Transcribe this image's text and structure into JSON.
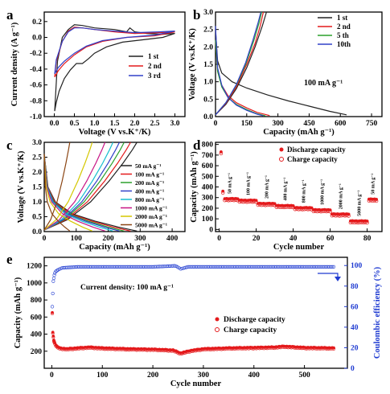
{
  "chart_data": [
    {
      "panel": "a",
      "type": "line",
      "xlabel": "Voltage (V vs.K⁺/K)",
      "ylabel": "Current density (A g⁻¹)",
      "xlim": [
        -0.25,
        3.25
      ],
      "ylim": [
        -1.0,
        0.32
      ],
      "xticks": [
        "0.0",
        "0.5",
        "1.0",
        "1.5",
        "2.0",
        "2.5",
        "3.0"
      ],
      "yticks": [
        "-1.0",
        "-0.8",
        "-0.6",
        "-0.4",
        "-0.2",
        "0.0",
        "0.2"
      ],
      "legend": {
        "position": "center-right",
        "entries": [
          "1 st",
          "2 nd",
          "3 rd"
        ]
      },
      "series": [
        {
          "name": "1 st",
          "color": "#222222",
          "points": [
            [
              0.01,
              -0.93
            ],
            [
              0.05,
              -0.82
            ],
            [
              0.12,
              -0.68
            ],
            [
              0.25,
              -0.52
            ],
            [
              0.4,
              -0.41
            ],
            [
              0.55,
              -0.33
            ],
            [
              0.7,
              -0.33
            ],
            [
              0.85,
              -0.27
            ],
            [
              1.0,
              -0.2
            ],
            [
              1.3,
              -0.12
            ],
            [
              1.7,
              -0.06
            ],
            [
              2.2,
              -0.03
            ],
            [
              2.7,
              0.0
            ],
            [
              3.0,
              0.05
            ],
            [
              2.7,
              0.04
            ],
            [
              2.3,
              0.05
            ],
            [
              2.0,
              0.07
            ],
            [
              1.88,
              0.12
            ],
            [
              1.8,
              0.07
            ],
            [
              1.5,
              0.1
            ],
            [
              1.0,
              0.12
            ],
            [
              0.7,
              0.15
            ],
            [
              0.5,
              0.16
            ],
            [
              0.35,
              0.1
            ],
            [
              0.2,
              0.0
            ],
            [
              0.08,
              -0.3
            ],
            [
              0.01,
              -0.93
            ]
          ]
        },
        {
          "name": "2 nd",
          "color": "#e41a1c",
          "points": [
            [
              0.01,
              -0.5
            ],
            [
              0.1,
              -0.42
            ],
            [
              0.25,
              -0.33
            ],
            [
              0.5,
              -0.22
            ],
            [
              0.8,
              -0.12
            ],
            [
              1.2,
              -0.05
            ],
            [
              1.8,
              0.0
            ],
            [
              2.5,
              0.02
            ],
            [
              3.0,
              0.07
            ],
            [
              2.6,
              0.06
            ],
            [
              2.0,
              0.05
            ],
            [
              1.5,
              0.07
            ],
            [
              1.0,
              0.1
            ],
            [
              0.7,
              0.12
            ],
            [
              0.5,
              0.13
            ],
            [
              0.35,
              0.08
            ],
            [
              0.2,
              -0.05
            ],
            [
              0.05,
              -0.3
            ],
            [
              0.01,
              -0.5
            ]
          ]
        },
        {
          "name": "3 rd",
          "color": "#3140c8",
          "points": [
            [
              0.01,
              -0.46
            ],
            [
              0.1,
              -0.38
            ],
            [
              0.25,
              -0.3
            ],
            [
              0.5,
              -0.2
            ],
            [
              0.8,
              -0.11
            ],
            [
              1.2,
              -0.04
            ],
            [
              1.8,
              0.0
            ],
            [
              2.5,
              0.03
            ],
            [
              3.0,
              0.08
            ],
            [
              2.6,
              0.07
            ],
            [
              2.0,
              0.06
            ],
            [
              1.5,
              0.08
            ],
            [
              1.0,
              0.1
            ],
            [
              0.7,
              0.12
            ],
            [
              0.5,
              0.12
            ],
            [
              0.35,
              0.07
            ],
            [
              0.2,
              -0.05
            ],
            [
              0.05,
              -0.28
            ],
            [
              0.01,
              -0.46
            ]
          ]
        }
      ]
    },
    {
      "panel": "b",
      "type": "line",
      "xlabel": "Capacity (mAh g⁻¹)",
      "ylabel": "Voltage (V vs.K⁺/K)",
      "xlim": [
        0,
        800
      ],
      "ylim": [
        0,
        3.0
      ],
      "xticks": [
        "0",
        "150",
        "300",
        "450",
        "600",
        "750"
      ],
      "yticks": [
        "0.0",
        "0.5",
        "1.0",
        "1.5",
        "2.0",
        "2.5",
        "3.0"
      ],
      "annotation": "100 mA g⁻¹",
      "legend": {
        "position": "top-right",
        "entries": [
          "1 st",
          "2 nd",
          "5 th",
          "10th"
        ]
      },
      "series": [
        {
          "name": "1 st",
          "color": "#222222",
          "points": [
            [
              0,
              2.5
            ],
            [
              10,
              1.6
            ],
            [
              30,
              1.25
            ],
            [
              80,
              1.0
            ],
            [
              150,
              0.82
            ],
            [
              250,
              0.62
            ],
            [
              350,
              0.45
            ],
            [
              450,
              0.3
            ],
            [
              550,
              0.15
            ],
            [
              630,
              0.05
            ]
          ]
        },
        {
          "name": "2 nd",
          "color": "#e41a1c",
          "points": [
            [
              0,
              2.2
            ],
            [
              10,
              1.3
            ],
            [
              30,
              0.9
            ],
            [
              60,
              0.6
            ],
            [
              100,
              0.4
            ],
            [
              150,
              0.25
            ],
            [
              200,
              0.12
            ],
            [
              260,
              0.03
            ]
          ]
        },
        {
          "name": "5 th",
          "color": "#2ca02c",
          "points": [
            [
              0,
              2.2
            ],
            [
              10,
              1.3
            ],
            [
              30,
              0.85
            ],
            [
              60,
              0.55
            ],
            [
              100,
              0.35
            ],
            [
              150,
              0.2
            ],
            [
              200,
              0.08
            ],
            [
              240,
              0.02
            ]
          ]
        },
        {
          "name": "10th",
          "color": "#3140c8",
          "points": [
            [
              0,
              2.6
            ],
            [
              10,
              1.4
            ],
            [
              30,
              0.9
            ],
            [
              60,
              0.55
            ],
            [
              100,
              0.33
            ],
            [
              150,
              0.18
            ],
            [
              200,
              0.07
            ],
            [
              230,
              0.02
            ]
          ]
        },
        {
          "name": "1 st charge",
          "color": "#222222",
          "points": [
            [
              0,
              0.05
            ],
            [
              50,
              0.35
            ],
            [
              100,
              0.8
            ],
            [
              150,
              1.4
            ],
            [
              190,
              2.0
            ],
            [
              225,
              2.6
            ],
            [
              245,
              3.0
            ]
          ]
        },
        {
          "name": "2 nd charge",
          "color": "#e41a1c",
          "points": [
            [
              0,
              0.05
            ],
            [
              50,
              0.38
            ],
            [
              100,
              0.85
            ],
            [
              150,
              1.5
            ],
            [
              190,
              2.1
            ],
            [
              215,
              2.6
            ],
            [
              230,
              3.0
            ]
          ]
        },
        {
          "name": "5 th charge",
          "color": "#2ca02c",
          "points": [
            [
              0,
              0.05
            ],
            [
              50,
              0.4
            ],
            [
              100,
              0.9
            ],
            [
              145,
              1.5
            ],
            [
              185,
              2.2
            ],
            [
              210,
              2.7
            ],
            [
              222,
              3.0
            ]
          ]
        },
        {
          "name": "10th charge",
          "color": "#3140c8",
          "points": [
            [
              0,
              0.05
            ],
            [
              50,
              0.4
            ],
            [
              100,
              0.92
            ],
            [
              145,
              1.55
            ],
            [
              180,
              2.2
            ],
            [
              205,
              2.7
            ],
            [
              218,
              3.0
            ]
          ]
        }
      ]
    },
    {
      "panel": "c",
      "type": "line",
      "xlabel": "Capacity (mAh g⁻¹)",
      "ylabel": "Voltage (V vs.K⁺/K)",
      "xlim": [
        0,
        440
      ],
      "ylim": [
        0,
        3.0
      ],
      "xticks": [
        "0",
        "100",
        "200",
        "300",
        "400"
      ],
      "yticks": [
        "0.0",
        "0.5",
        "1.0",
        "1.5",
        "2.0",
        "2.5",
        "3.0"
      ],
      "legend": {
        "position": "right",
        "entries": [
          "50  mA g⁻¹",
          "100  mA g⁻¹",
          "200  mA g⁻¹",
          "400  mA g⁻¹",
          "800  mA g⁻¹",
          "1000 mA g⁻¹",
          "2000 mA g⁻¹",
          "5000 mA g⁻¹"
        ]
      },
      "series": [
        {
          "name": "50  mA g⁻¹",
          "color": "#222222",
          "cap": 290
        },
        {
          "name": "100  mA g⁻¹",
          "color": "#e41a1c",
          "cap": 270
        },
        {
          "name": "200  mA g⁻¹",
          "color": "#2ca02c",
          "cap": 250
        },
        {
          "name": "400  mA g⁻¹",
          "color": "#3140c8",
          "cap": 235
        },
        {
          "name": "800  mA g⁻¹",
          "color": "#17becf",
          "cap": 215
        },
        {
          "name": "1000 mA g⁻¹",
          "color": "#c71585",
          "cap": 190
        },
        {
          "name": "2000 mA g⁻¹",
          "color": "#d4c700",
          "cap": 150
        },
        {
          "name": "5000 mA g⁻¹",
          "color": "#8b4513",
          "cap": 80
        }
      ]
    },
    {
      "panel": "d",
      "type": "scatter",
      "xlabel": "Cycle number",
      "ylabel": "Capacity (mAh g⁻¹)",
      "xlim": [
        -2,
        88
      ],
      "ylim": [
        -20,
        820
      ],
      "xticks": [
        "0",
        "20",
        "40",
        "60",
        "80"
      ],
      "yticks": [
        "0",
        "100",
        "200",
        "300",
        "400",
        "500",
        "600",
        "700",
        "800"
      ],
      "legend": {
        "position": "top-right",
        "entries": [
          "Discharge capacity",
          "Charge capacity"
        ]
      },
      "rate_labels": [
        "50 mA g⁻¹",
        "100 mA g⁻¹",
        "200 mA g⁻¹",
        "400 mA g⁻¹",
        "800 mA g⁻¹",
        "1000 mA g⁻¹",
        "2000 mA g⁻¹",
        "5000 mA g⁻¹",
        "50 mA g⁻¹"
      ],
      "segments": [
        {
          "from": 1,
          "to": 10,
          "value": 290
        },
        {
          "from": 11,
          "to": 20,
          "value": 275
        },
        {
          "from": 21,
          "to": 30,
          "value": 245
        },
        {
          "from": 31,
          "to": 40,
          "value": 225
        },
        {
          "from": 41,
          "to": 50,
          "value": 205
        },
        {
          "from": 51,
          "to": 60,
          "value": 185
        },
        {
          "from": 61,
          "to": 70,
          "value": 145
        },
        {
          "from": 71,
          "to": 80,
          "value": 80
        },
        {
          "from": 81,
          "to": 85,
          "value": 285
        }
      ],
      "first_discharge": 730,
      "second_discharge": 360
    },
    {
      "panel": "e",
      "type": "scatter",
      "xlabel": "Cycle number",
      "ylabel": "Capacity (mAh g⁻¹)",
      "ylabel_right": "Coulombic efficiency (%)",
      "annotation": "Current density: 100 mA g⁻¹",
      "xlim": [
        -15,
        585
      ],
      "ylim": [
        0,
        1300
      ],
      "ylim_right": [
        0,
        108
      ],
      "xticks": [
        "0",
        "100",
        "200",
        "300",
        "400",
        "500"
      ],
      "yticks": [
        "200",
        "400",
        "600",
        "800",
        "1000",
        "1200"
      ],
      "yticks_right": [
        "0",
        "20",
        "40",
        "60",
        "80",
        "100"
      ],
      "legend": {
        "position": "center-right",
        "entries": [
          "Discharge capacity",
          "Charge capacity"
        ]
      },
      "capacity_points": [
        [
          1,
          650
        ],
        [
          2,
          420
        ],
        [
          4,
          330
        ],
        [
          8,
          270
        ],
        [
          15,
          240
        ],
        [
          30,
          230
        ],
        [
          50,
          240
        ],
        [
          75,
          250
        ],
        [
          100,
          240
        ],
        [
          150,
          230
        ],
        [
          200,
          225
        ],
        [
          240,
          215
        ],
        [
          255,
          180
        ],
        [
          275,
          210
        ],
        [
          300,
          230
        ],
        [
          350,
          240
        ],
        [
          400,
          245
        ],
        [
          440,
          250
        ],
        [
          460,
          260
        ],
        [
          500,
          245
        ],
        [
          560,
          240
        ]
      ],
      "efficiency_points": [
        [
          1,
          60
        ],
        [
          3,
          85
        ],
        [
          6,
          93
        ],
        [
          12,
          96
        ],
        [
          20,
          98
        ],
        [
          50,
          99
        ],
        [
          100,
          99
        ],
        [
          200,
          99
        ],
        [
          245,
          100
        ],
        [
          255,
          97
        ],
        [
          270,
          99
        ],
        [
          400,
          99
        ],
        [
          560,
          99
        ]
      ],
      "colors": {
        "discharge": "#e41a1c",
        "charge": "#e41a1c",
        "efficiency": "#1f3bd1"
      }
    }
  ]
}
